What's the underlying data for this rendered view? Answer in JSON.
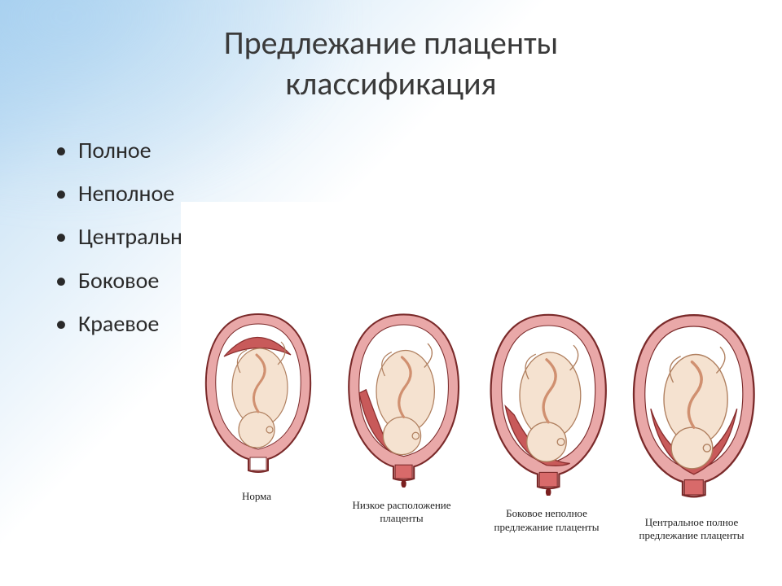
{
  "title_line1": "Предлежание плаценты",
  "title_line2": "классификация",
  "bullets": [
    "Полное",
    "Неполное",
    "Центральное",
    "Боковое",
    "Краевое"
  ],
  "diagrams": [
    {
      "caption": "Норма",
      "placenta_mode": "top",
      "cervix_fill": "#ffffff",
      "drip": false
    },
    {
      "caption": "Низкое расположение плаценты",
      "placenta_mode": "low",
      "cervix_fill": "#d86a6a",
      "drip": true
    },
    {
      "caption": "Боковое неполное предлежание плаценты",
      "placenta_mode": "partial",
      "cervix_fill": "#d86a6a",
      "drip": true
    },
    {
      "caption": "Центральное полное предлежание плаценты",
      "placenta_mode": "complete",
      "cervix_fill": "#d86a6a",
      "drip": false
    }
  ],
  "colors": {
    "uterus_outline": "#7a2a2a",
    "uterus_wall": "#e9a8a8",
    "amniotic": "#ffffff",
    "placenta": "#c85a5a",
    "placenta_edge": "#8a2f2f",
    "fetus_fill": "#f5e2d0",
    "fetus_line": "#b08060",
    "cord": "#d09070",
    "blood": "#7a1f1f"
  }
}
